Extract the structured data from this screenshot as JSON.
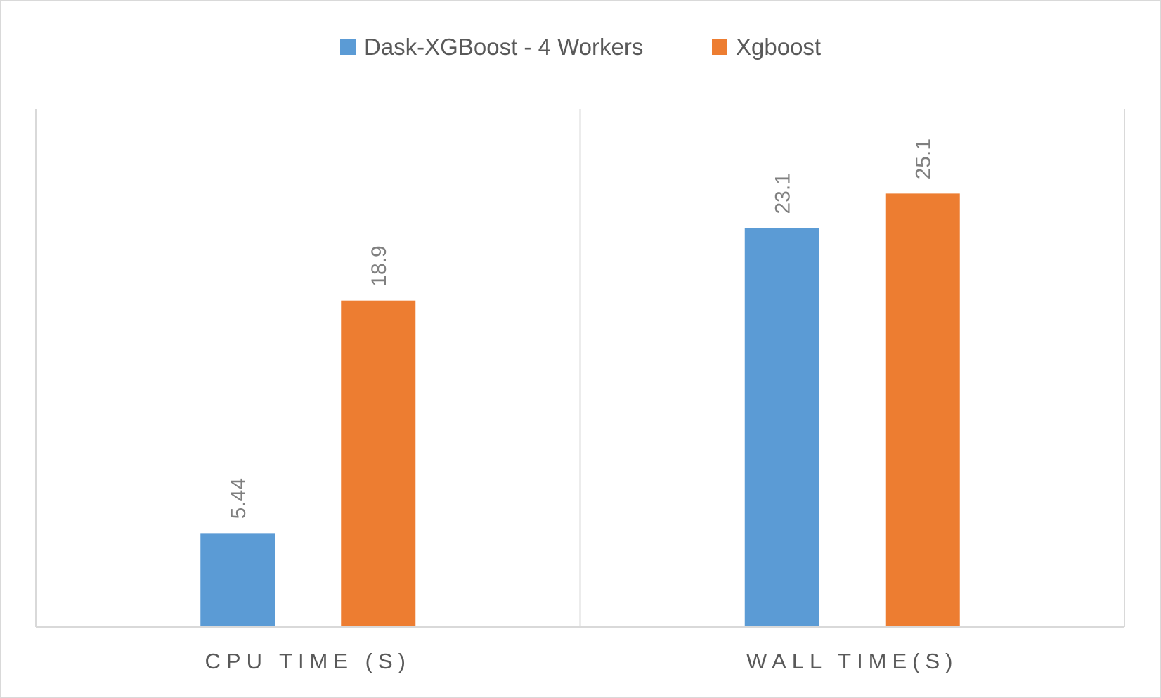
{
  "chart_data": {
    "type": "bar",
    "categories": [
      "CPU TIME (S)",
      "WALL TIME(S)"
    ],
    "series": [
      {
        "name": "Dask-XGBoost - 4 Workers",
        "values": [
          5.44,
          23.1
        ],
        "labels": [
          "5.44",
          "23.1"
        ],
        "color": "#5b9bd5"
      },
      {
        "name": "Xgboost",
        "values": [
          18.9,
          25.1
        ],
        "labels": [
          "18.9",
          "25.1"
        ],
        "color": "#ed7d31"
      }
    ],
    "title": "",
    "xlabel": "",
    "ylabel": "",
    "ylim": [
      0,
      30
    ],
    "legend_position": "top",
    "grid": false,
    "colors": {
      "frame": "#d9d9d9",
      "axis": "#d9d9d9",
      "text": "#595959",
      "data_label": "#7f7f7f"
    }
  }
}
